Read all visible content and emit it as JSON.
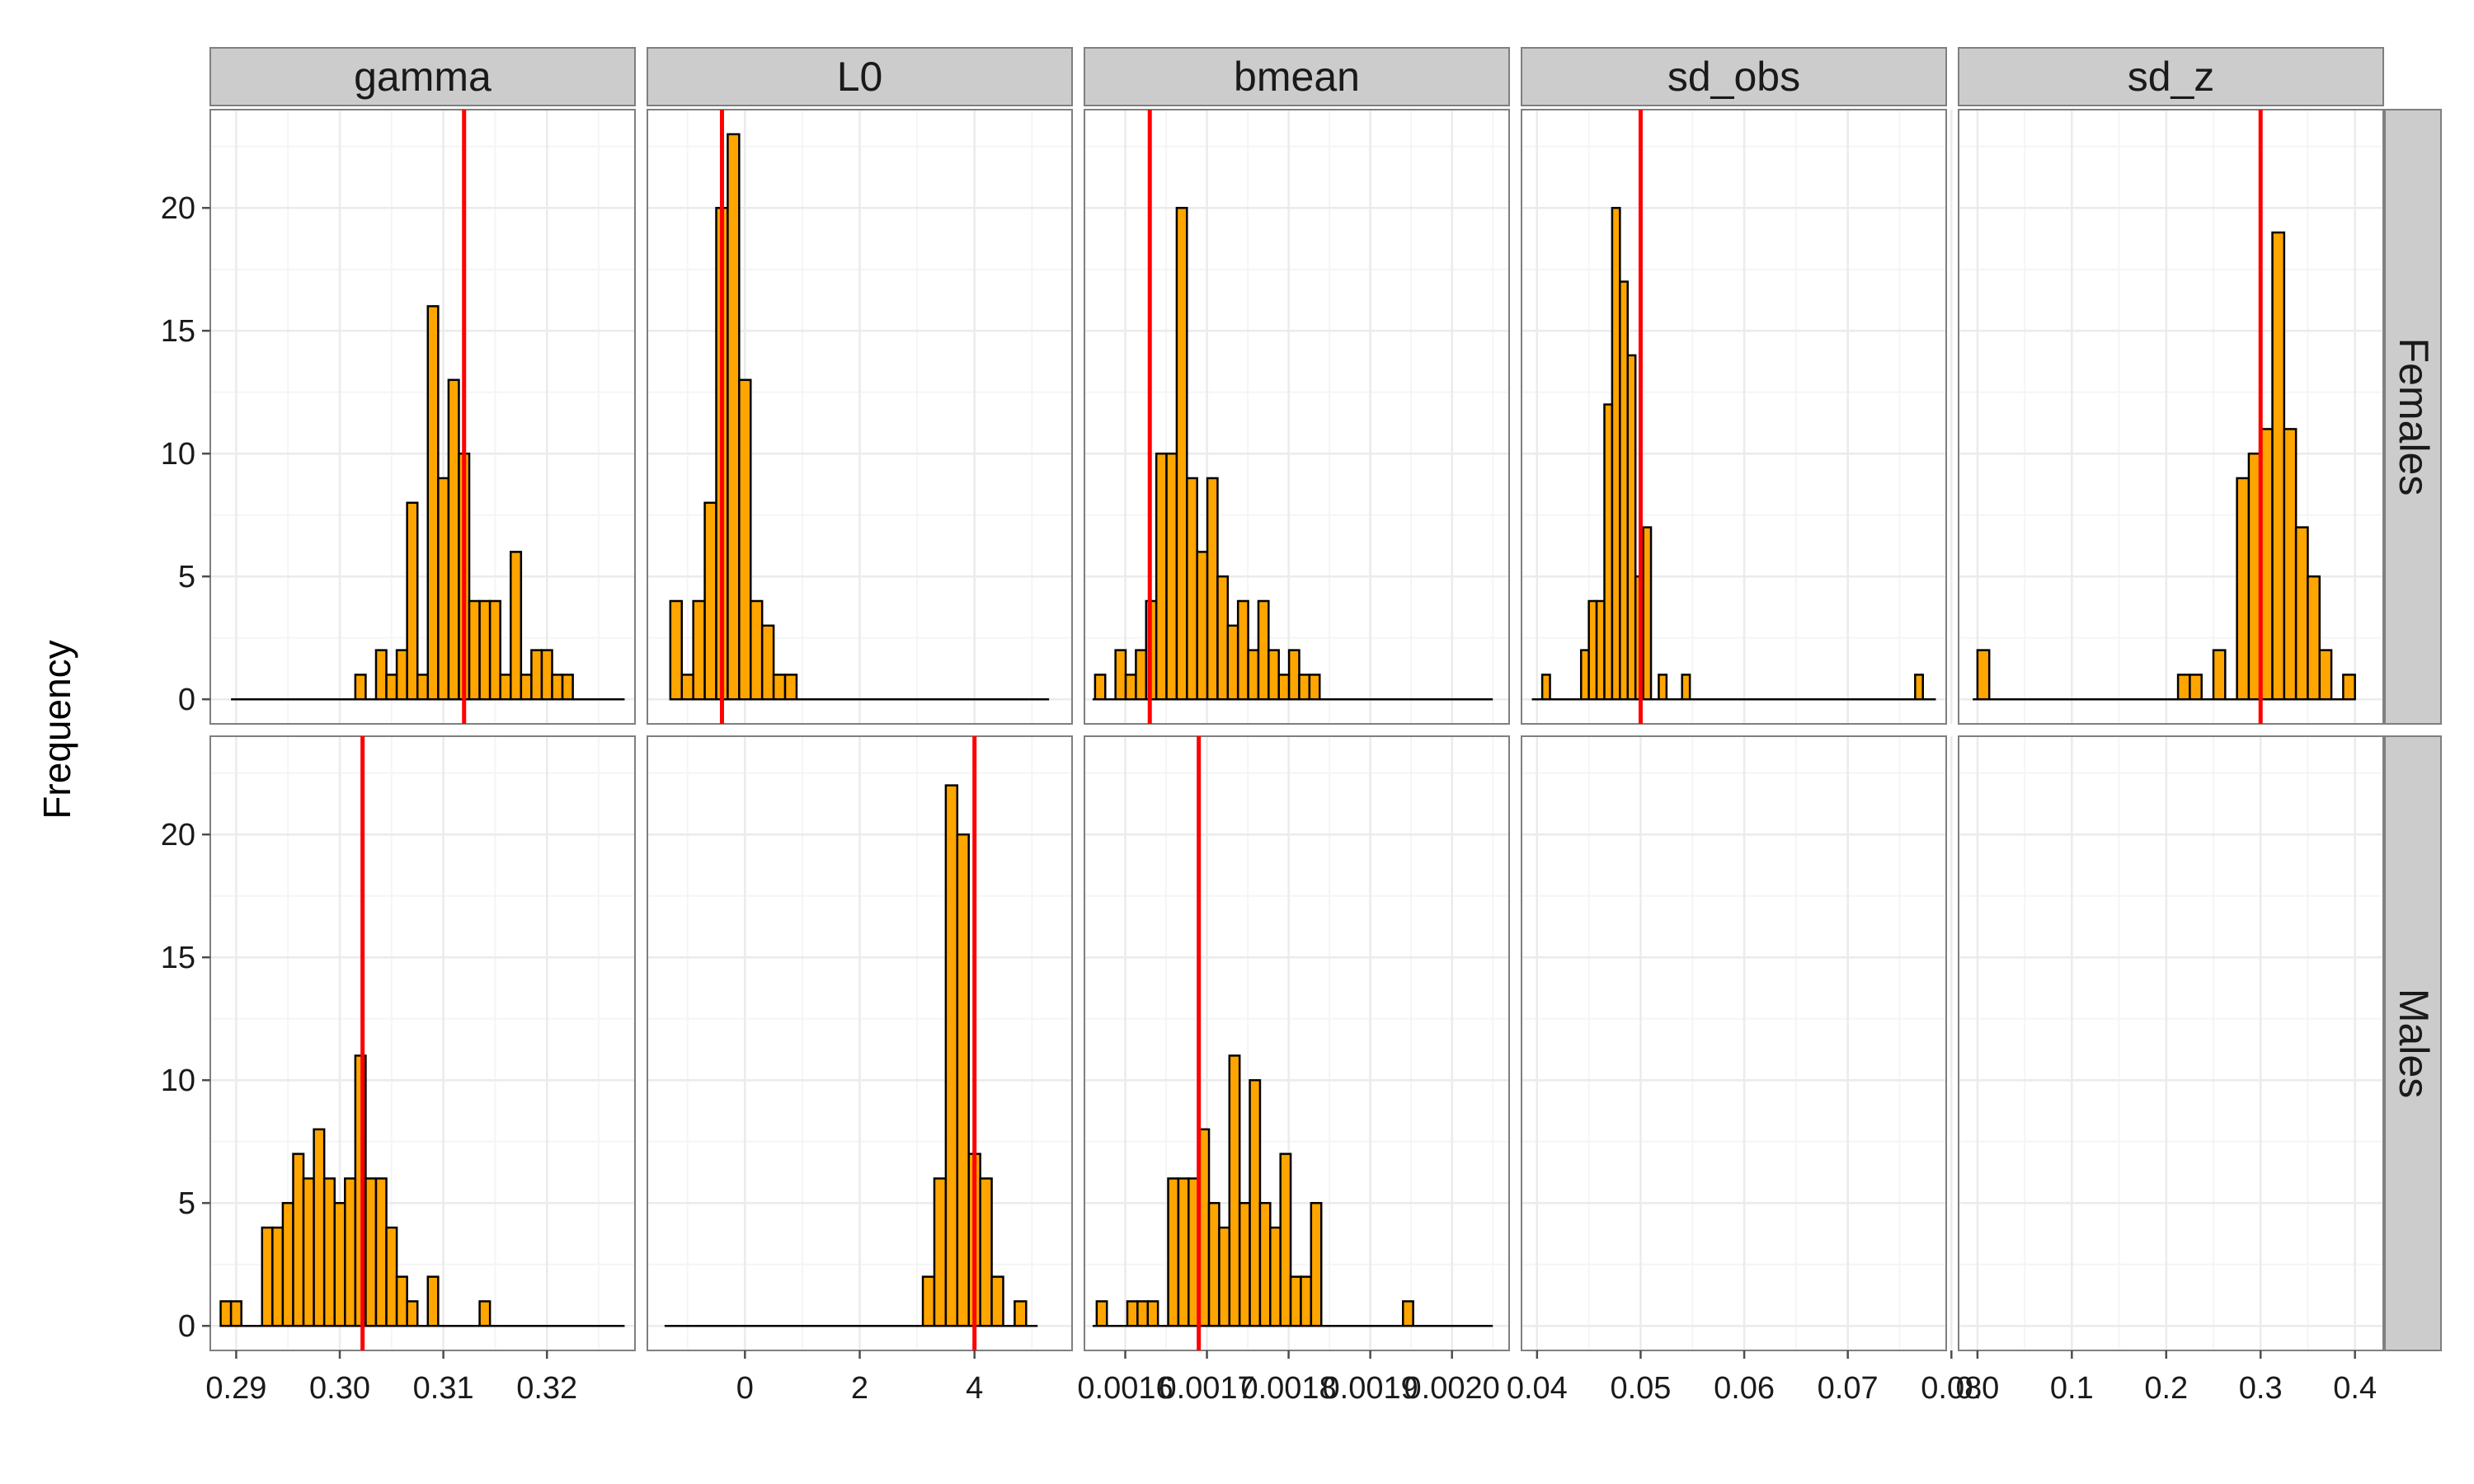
{
  "chart_data": {
    "type": "bar",
    "subtype": "faceted-histogram",
    "ylabel": "Frequency",
    "ylim": [
      -1,
      24
    ],
    "yticks": [
      0,
      5,
      10,
      15,
      20
    ],
    "grid": true,
    "colors": {
      "bar": "#FFA500",
      "outline": "#000000",
      "reference_line": "#FF0000",
      "strip": "#CCCCCC",
      "grid": "#EBEBEB"
    },
    "columns": [
      {
        "name": "gamma",
        "xlim": [
          0.2875,
          0.3285
        ],
        "ticks": [
          0.29,
          0.3,
          0.31,
          0.32
        ],
        "tick_labels": [
          "0.29",
          "0.30",
          "0.31",
          "0.32"
        ]
      },
      {
        "name": "L0",
        "xlim": [
          -1.7,
          5.7
        ],
        "ticks": [
          0,
          2,
          4
        ],
        "tick_labels": [
          "0",
          "2",
          "4"
        ]
      },
      {
        "name": "bmean",
        "xlim": [
          0.00155,
          0.00207
        ],
        "ticks": [
          0.0016,
          0.0017,
          0.0018,
          0.0019,
          0.002
        ],
        "tick_labels": [
          "0.0016",
          "0.0017",
          "0.0018",
          "0.0019",
          "0.0020"
        ]
      },
      {
        "name": "sd_obs",
        "xlim": [
          0.0385,
          0.0795
        ],
        "ticks": [
          0.04,
          0.05,
          0.06,
          0.07,
          0.08
        ],
        "tick_labels": [
          "0.04",
          "0.05",
          "0.06",
          "0.07",
          "0.08"
        ]
      },
      {
        "name": "sd_z",
        "xlim": [
          -0.02,
          0.43
        ],
        "ticks": [
          0.0,
          0.1,
          0.2,
          0.3,
          0.4
        ],
        "tick_labels": [
          "0.0",
          "0.1",
          "0.2",
          "0.3",
          "0.4"
        ]
      }
    ],
    "rows": [
      "Females",
      "Males"
    ],
    "panels": [
      {
        "row": "Females",
        "column": "gamma",
        "reference": 0.312,
        "range": [
          0.2895,
          0.3275
        ],
        "bin_start": 0.3015,
        "binwidth": 0.001,
        "counts": [
          1,
          0,
          2,
          1,
          2,
          8,
          1,
          16,
          9,
          13,
          10,
          4,
          4,
          4,
          1,
          6,
          1,
          2,
          2,
          1,
          1
        ]
      },
      {
        "row": "Females",
        "column": "L0",
        "reference": -0.4,
        "range": [
          -1.3,
          5.3
        ],
        "bin_start": -1.3,
        "binwidth": 0.2,
        "counts": [
          4,
          1,
          4,
          8,
          20,
          23,
          13,
          4,
          3,
          1,
          1
        ]
      },
      {
        "row": "Females",
        "column": "bmean",
        "reference": 0.00163,
        "range": [
          0.00156,
          0.00205
        ],
        "bin_start": 0.001563,
        "binwidth": 1.25e-05,
        "counts": [
          1,
          0,
          2,
          1,
          2,
          4,
          10,
          10,
          20,
          9,
          6,
          9,
          5,
          3,
          4,
          2,
          4,
          2,
          1,
          2,
          1,
          1
        ]
      },
      {
        "row": "Females",
        "column": "sd_obs",
        "reference": 0.05,
        "range": [
          0.0395,
          0.0785
        ],
        "bin_start": 0.0405,
        "binwidth": 0.00075,
        "counts": [
          1,
          0,
          0,
          0,
          0,
          2,
          4,
          4,
          12,
          20,
          17,
          14,
          5,
          7,
          0,
          1,
          0,
          0,
          1,
          0,
          0,
          0,
          0,
          0,
          0,
          0,
          0,
          0,
          0,
          0,
          0,
          0,
          0,
          0,
          0,
          0,
          0,
          0,
          0,
          0,
          0,
          0,
          0,
          0,
          0,
          0,
          0,
          0,
          1
        ]
      },
      {
        "row": "Females",
        "column": "sd_z",
        "reference": 0.3,
        "range": [
          -0.005,
          0.395
        ],
        "bin_start": 0.0,
        "binwidth": 0.0125,
        "counts": [
          2,
          0,
          0,
          0,
          0,
          0,
          0,
          0,
          0,
          0,
          0,
          0,
          0,
          0,
          0,
          0,
          0,
          1,
          1,
          0,
          2,
          0,
          9,
          10,
          11,
          19,
          11,
          7,
          5,
          2,
          0,
          1
        ]
      },
      {
        "row": "Males",
        "column": "gamma",
        "reference": 0.3022,
        "range": [
          0.2885,
          0.3275
        ],
        "bin_start": 0.2885,
        "binwidth": 0.001,
        "counts": [
          1,
          1,
          0,
          0,
          4,
          4,
          5,
          7,
          6,
          8,
          6,
          5,
          6,
          11,
          6,
          6,
          4,
          2,
          1,
          0,
          2,
          0,
          0,
          0,
          0,
          1
        ]
      },
      {
        "row": "Males",
        "column": "L0",
        "reference": 4.0,
        "range": [
          -1.4,
          5.1
        ],
        "bin_start": 3.1,
        "binwidth": 0.2,
        "counts": [
          2,
          6,
          22,
          20,
          7,
          6,
          2,
          0,
          1
        ]
      },
      {
        "row": "Males",
        "column": "bmean",
        "reference": 0.00169,
        "range": [
          0.00156,
          0.00205
        ],
        "bin_start": 0.001565,
        "binwidth": 1.25e-05,
        "counts": [
          1,
          0,
          0,
          1,
          1,
          1,
          0,
          6,
          6,
          6,
          8,
          5,
          4,
          11,
          5,
          10,
          5,
          4,
          7,
          2,
          2,
          5,
          0,
          0,
          0,
          0,
          0,
          0,
          0,
          0,
          1
        ]
      }
    ]
  }
}
